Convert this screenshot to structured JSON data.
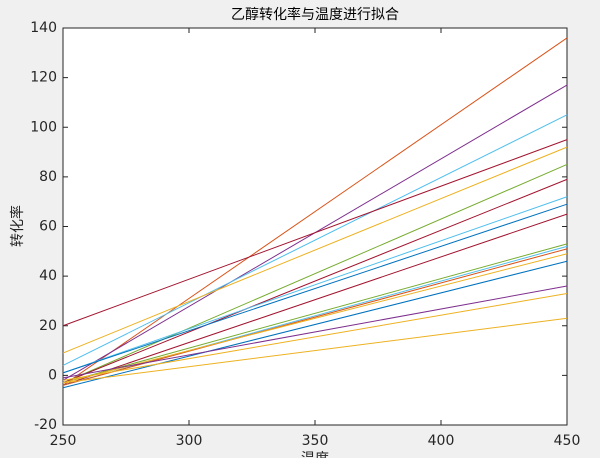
{
  "chart_data": {
    "type": "line",
    "title": "乙醇转化率与温度进行拟合",
    "x_label": "温度",
    "y_label": "转化率",
    "x": [
      250,
      450
    ],
    "series": [
      {
        "color": "#D95319",
        "values": [
          -4,
          136
        ]
      },
      {
        "color": "#7E2F8E",
        "values": [
          -2,
          117
        ]
      },
      {
        "color": "#4DBEEE",
        "values": [
          4,
          105
        ]
      },
      {
        "color": "#A2142F",
        "values": [
          20,
          95
        ]
      },
      {
        "color": "#EDB120",
        "values": [
          9,
          92
        ]
      },
      {
        "color": "#77AC30",
        "values": [
          -3,
          85
        ]
      },
      {
        "color": "#A2142F",
        "values": [
          -3,
          79
        ]
      },
      {
        "color": "#4DBEEE",
        "values": [
          1,
          72
        ]
      },
      {
        "color": "#0072BD",
        "values": [
          1,
          69
        ]
      },
      {
        "color": "#A2142F",
        "values": [
          -4,
          65
        ]
      },
      {
        "color": "#77AC30",
        "values": [
          -3,
          53
        ]
      },
      {
        "color": "#4DBEEE",
        "values": [
          -4,
          52
        ]
      },
      {
        "color": "#D95319",
        "values": [
          -4,
          51
        ]
      },
      {
        "color": "#EDB120",
        "values": [
          -3,
          49
        ]
      },
      {
        "color": "#0072BD",
        "values": [
          -5,
          46
        ]
      },
      {
        "color": "#7E2F8E",
        "values": [
          -1,
          36
        ]
      },
      {
        "color": "#EDB120",
        "values": [
          -2,
          33
        ]
      },
      {
        "color": "#EDB120",
        "values": [
          -3,
          23
        ]
      }
    ],
    "xlim": [
      250,
      450
    ],
    "xticks": [
      250,
      300,
      350,
      400,
      450
    ],
    "ylim": [
      -20,
      140
    ],
    "yticks": [
      -20,
      0,
      20,
      40,
      60,
      80,
      100,
      120,
      140
    ]
  }
}
